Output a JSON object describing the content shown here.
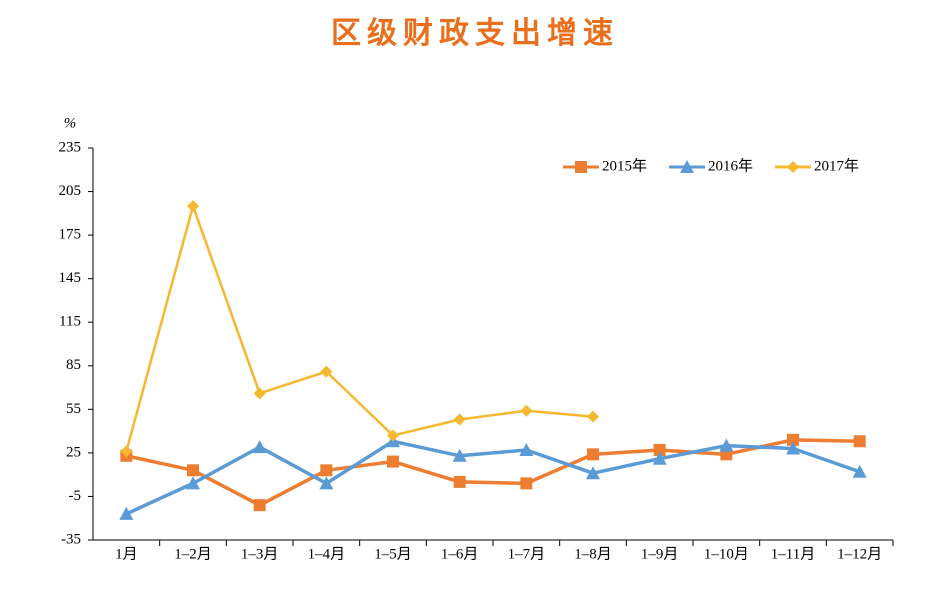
{
  "chart_data": {
    "type": "line",
    "title": "区级财政支出增速",
    "ylabel": "%",
    "categories": [
      "1月",
      "1–2月",
      "1–3月",
      "1–4月",
      "1–5月",
      "1–6月",
      "1–7月",
      "1–8月",
      "1–9月",
      "1–10月",
      "1–11月",
      "1–12月"
    ],
    "series": [
      {
        "name": "2015年",
        "color": "#ed7d31",
        "marker": "square",
        "values": [
          23,
          13,
          -11,
          13,
          19,
          5,
          4,
          24,
          27,
          24,
          34,
          33
        ]
      },
      {
        "name": "2016年",
        "color": "#5b9bd5",
        "marker": "triangle",
        "values": [
          -17,
          4,
          29,
          4,
          33,
          23,
          27,
          11,
          21,
          30,
          28,
          12
        ]
      },
      {
        "name": "2017年",
        "color": "#f5b82e",
        "marker": "diamond",
        "values": [
          26,
          195,
          66,
          81,
          37,
          48,
          54,
          50,
          null,
          null,
          null,
          null
        ]
      }
    ],
    "ylim": [
      -35,
      235
    ],
    "yticks": [
      -35,
      -5,
      25,
      55,
      85,
      115,
      145,
      175,
      205,
      235
    ],
    "grid": false,
    "legend": "top-right"
  }
}
